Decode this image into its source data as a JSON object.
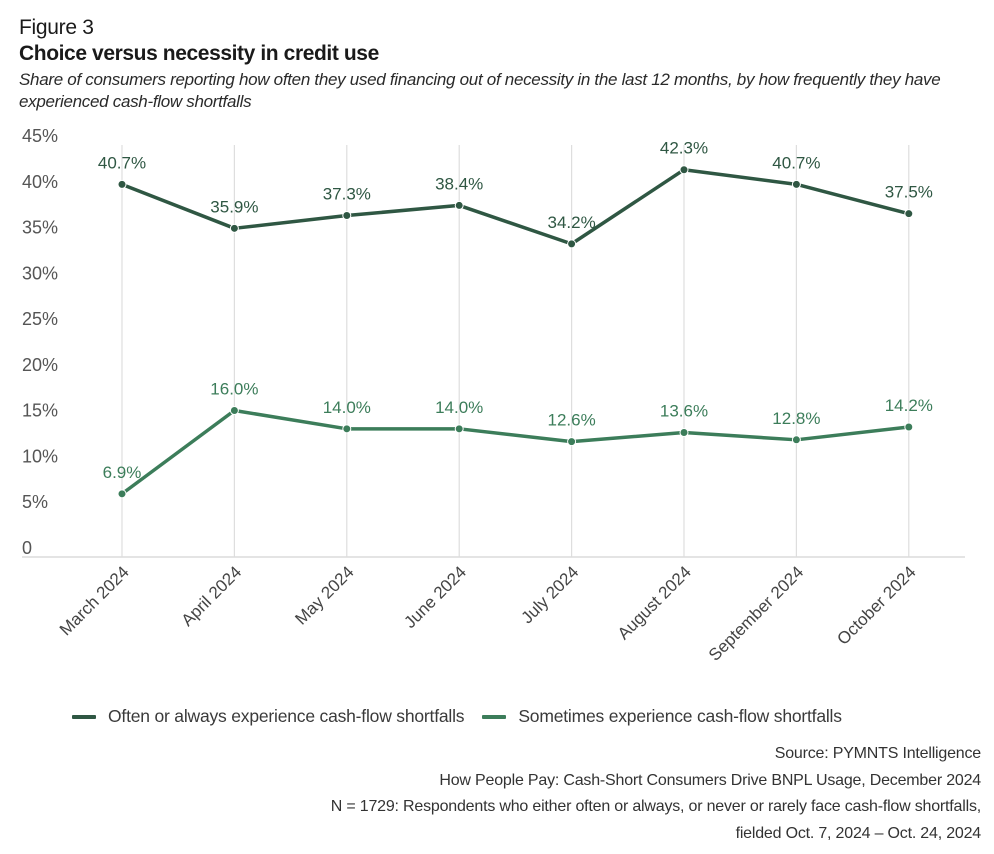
{
  "figure_label": "Figure 3",
  "chart_data": {
    "type": "line",
    "title": "Choice versus necessity in credit use",
    "subtitle": "Share of consumers reporting how often they used financing out of necessity in the last 12 months, by how frequently they have experienced cash-flow shortfalls",
    "xlabel": "",
    "ylabel": "",
    "categories": [
      "March 2024",
      "April 2024",
      "May 2024",
      "June 2024",
      "July 2024",
      "August 2024",
      "September 2024",
      "October 2024"
    ],
    "ylim": [
      0,
      45
    ],
    "yticks": [
      0,
      5,
      10,
      15,
      20,
      25,
      30,
      35,
      40,
      45
    ],
    "ytick_labels": [
      "0",
      "5%",
      "10%",
      "15%",
      "20%",
      "25%",
      "30%",
      "35%",
      "40%",
      "45%"
    ],
    "grid": "vertical",
    "legend_position": "bottom",
    "series": [
      {
        "name": "Often or always experience cash-flow shortfalls",
        "color": "#2f5743",
        "values": [
          40.7,
          35.9,
          37.3,
          38.4,
          34.2,
          42.3,
          40.7,
          37.5
        ],
        "labels": [
          "40.7%",
          "35.9%",
          "37.3%",
          "38.4%",
          "34.2%",
          "42.3%",
          "40.7%",
          "37.5%"
        ]
      },
      {
        "name": "Sometimes experience cash-flow shortfalls",
        "color": "#3c7d5a",
        "values": [
          6.9,
          16.0,
          14.0,
          14.0,
          12.6,
          13.6,
          12.8,
          14.2
        ],
        "labels": [
          "6.9%",
          "16.0%",
          "14.0%",
          "14.0%",
          "12.6%",
          "13.6%",
          "12.8%",
          "14.2%"
        ]
      }
    ]
  },
  "footer": {
    "source": "Source: PYMNTS Intelligence",
    "report": "How People Pay: Cash-Short Consumers Drive BNPL Usage, December 2024",
    "sample": "N = 1729: Respondents who either often or always, or never or rarely face cash-flow shortfalls,",
    "fielded": "fielded Oct. 7, 2024 – Oct. 24, 2024"
  }
}
